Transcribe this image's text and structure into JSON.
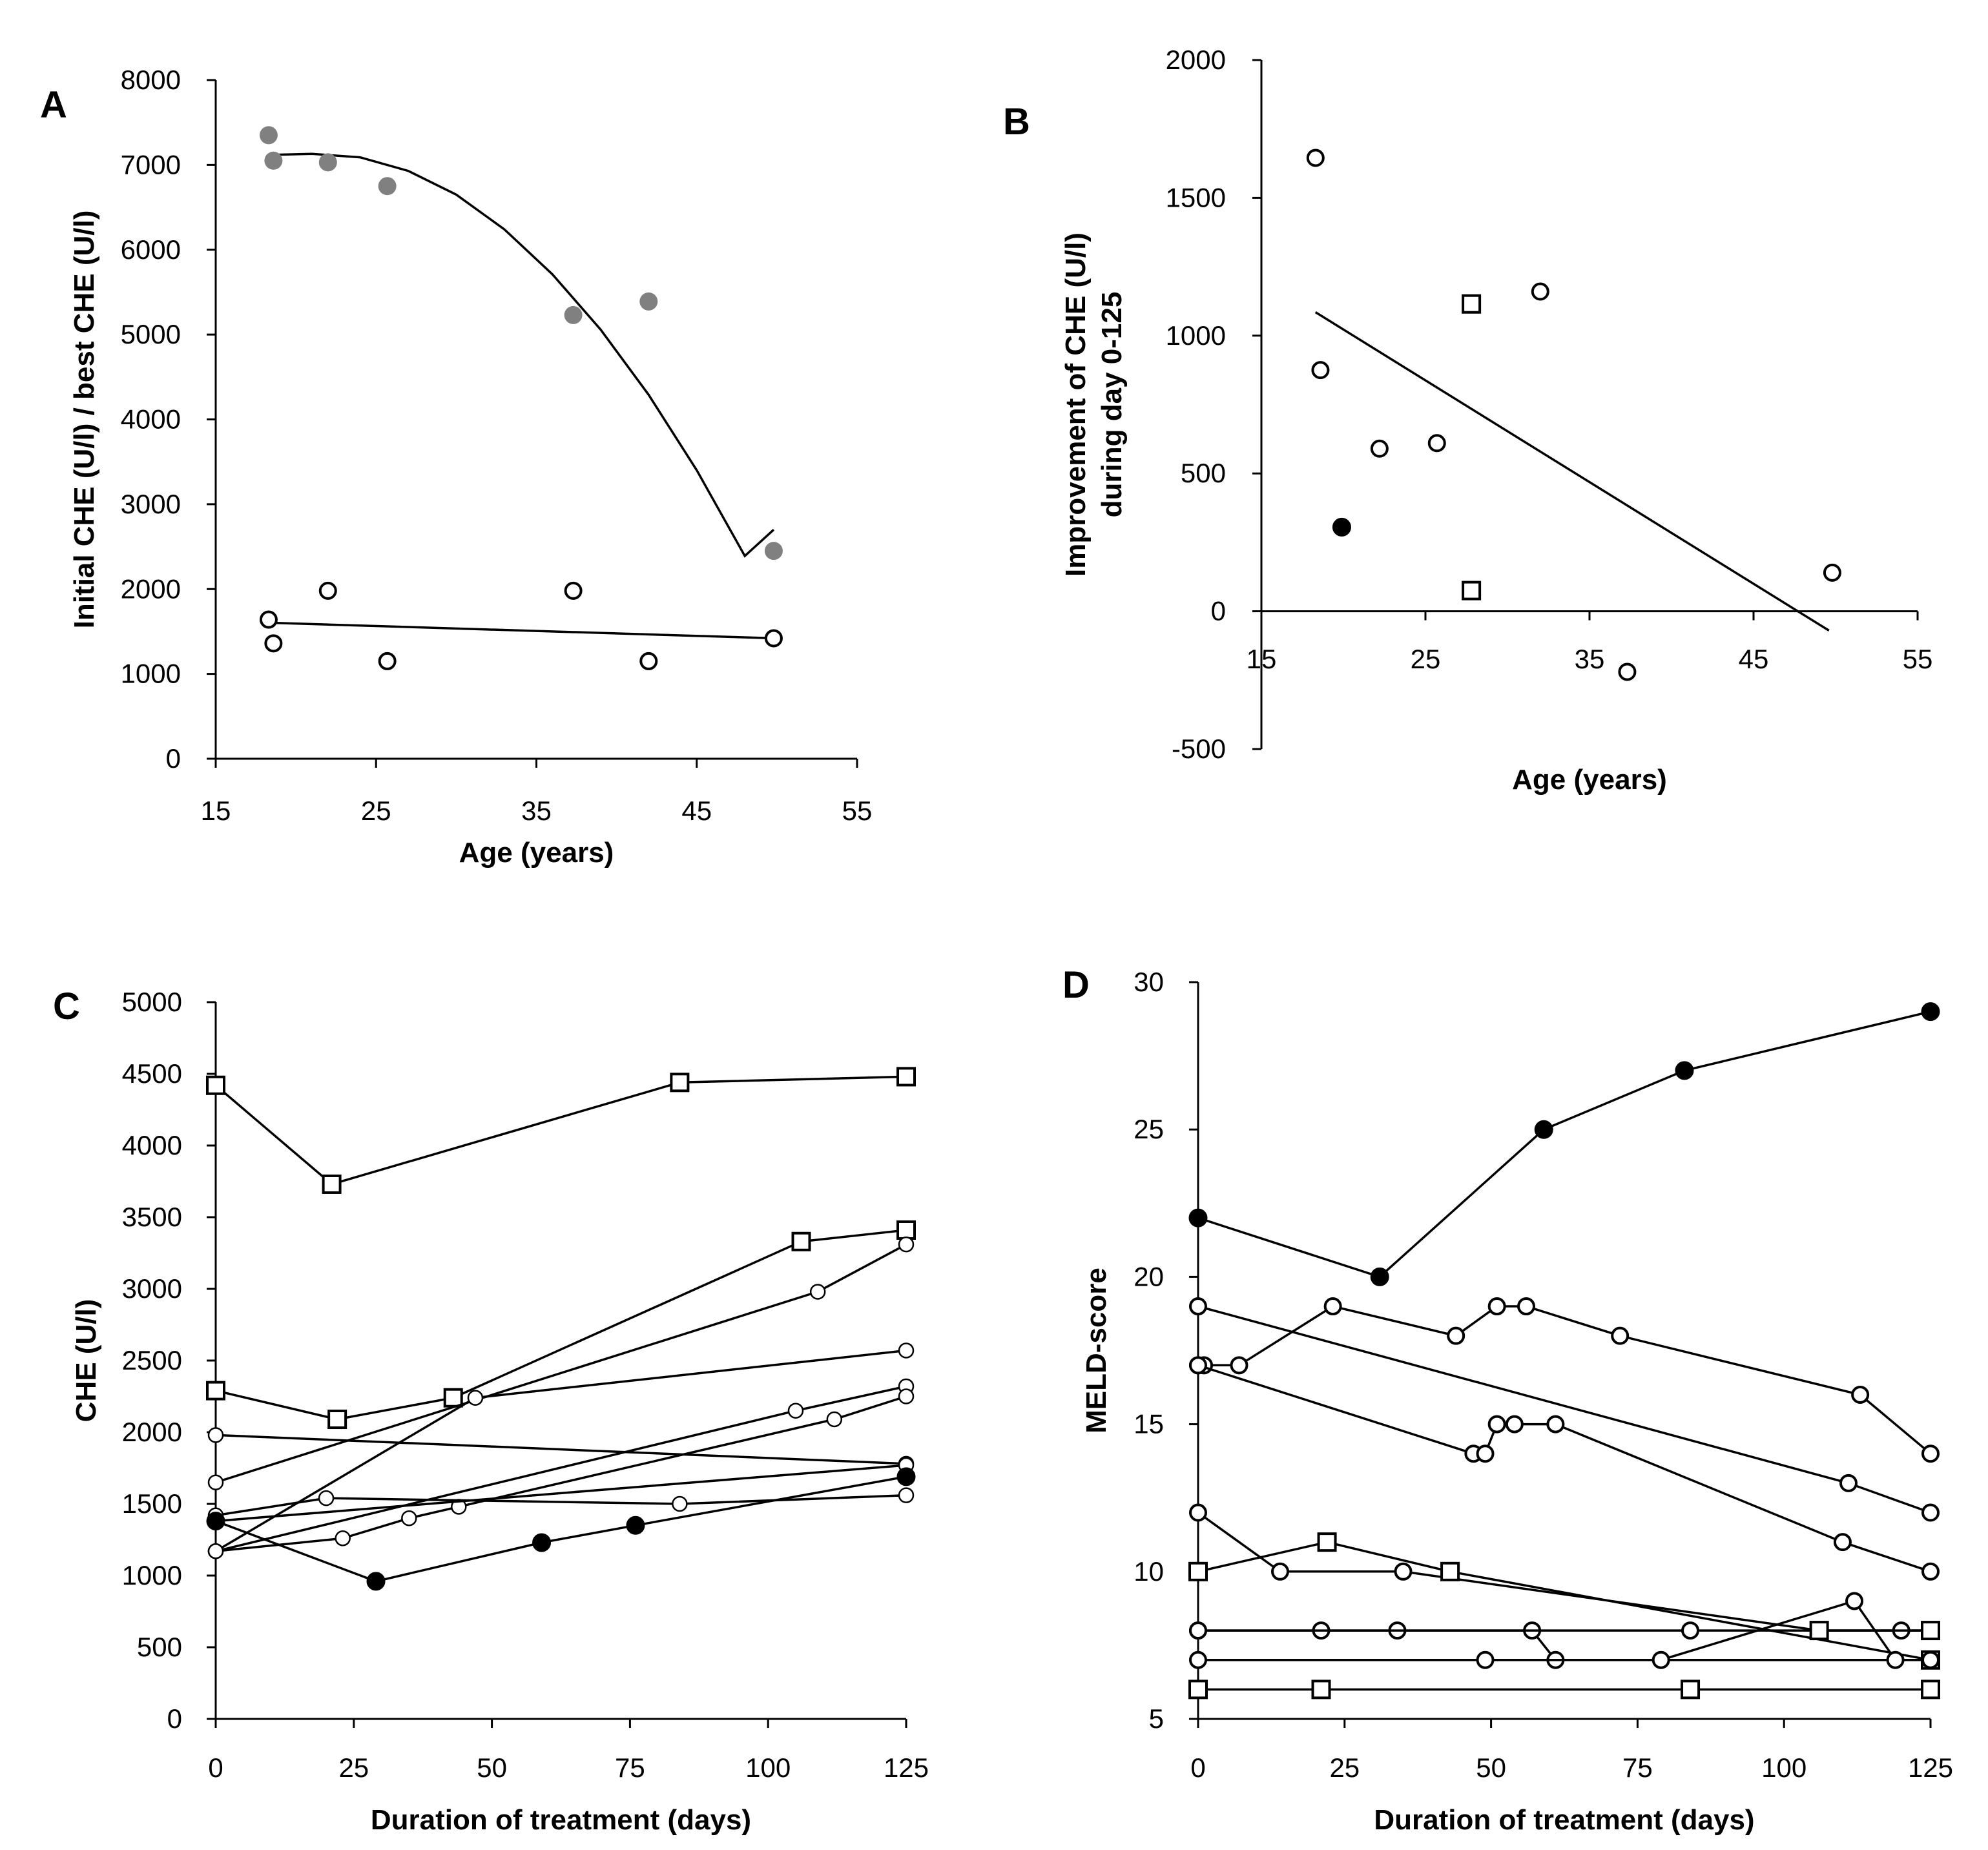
{
  "colors": {
    "ink": "#000000",
    "gray_marker": "#808080",
    "open_fill": "#ffffff"
  },
  "chart_data": [
    {
      "panel": "A",
      "type": "scatter",
      "xlabel": "Age (years)",
      "ylabel": "Initial CHE (U/l) / best CHE (U/l)",
      "xlim": [
        15,
        55
      ],
      "ylim": [
        0,
        8000
      ],
      "xticks": [
        15,
        25,
        35,
        45,
        55
      ],
      "yticks": [
        0,
        1000,
        2000,
        3000,
        4000,
        5000,
        6000,
        7000,
        8000
      ],
      "series": [
        {
          "name": "best CHE",
          "marker": "filled-gray",
          "x": [
            18.3,
            18.6,
            22.0,
            25.7,
            37.3,
            42.0,
            49.8
          ],
          "y": [
            7350,
            7050,
            7030,
            6750,
            5230,
            5390,
            2450
          ]
        },
        {
          "name": "initial CHE",
          "marker": "open-circle",
          "x": [
            18.3,
            18.6,
            22.0,
            25.7,
            37.3,
            42.0,
            49.8
          ],
          "y": [
            1640,
            1360,
            1980,
            1150,
            1980,
            1150,
            1420
          ]
        }
      ],
      "trendlines": [
        {
          "kind": "polynomial",
          "x": [
            18.8,
            21,
            24,
            27,
            30,
            33,
            36,
            39,
            42,
            45,
            48,
            49.8
          ],
          "y": [
            7120,
            7130,
            7090,
            6930,
            6650,
            6240,
            5710,
            5060,
            4290,
            3400,
            2390,
            2700
          ]
        },
        {
          "kind": "linear",
          "x": [
            18.8,
            49.8
          ],
          "y": [
            1600,
            1420
          ]
        }
      ]
    },
    {
      "panel": "B",
      "type": "scatter",
      "xlabel": "Age (years)",
      "ylabel_lines": [
        "Improvement of CHE (U/l)",
        "during day 0-125"
      ],
      "xlim": [
        15,
        55
      ],
      "ylim": [
        -500,
        2000
      ],
      "xticks": [
        15,
        25,
        35,
        45,
        55
      ],
      "yticks": [
        -500,
        0,
        500,
        1000,
        1500,
        2000
      ],
      "series": [
        {
          "name": "open circles",
          "marker": "open-circle",
          "x": [
            18.3,
            18.6,
            22.2,
            25.7,
            32.0,
            37.3,
            49.8
          ],
          "y": [
            1645,
            875,
            590,
            610,
            1160,
            -220,
            140
          ]
        },
        {
          "name": "filled circle",
          "marker": "filled-black",
          "x": [
            19.9
          ],
          "y": [
            305
          ]
        },
        {
          "name": "squares",
          "marker": "open-square",
          "x": [
            27.8,
            27.8
          ],
          "y": [
            1115,
            75
          ]
        }
      ],
      "trendlines": [
        {
          "kind": "linear",
          "x": [
            18.3,
            49.6
          ],
          "y": [
            1085,
            -70
          ]
        }
      ]
    },
    {
      "panel": "C",
      "type": "line",
      "xlabel": "Duration of treatment (days)",
      "ylabel": "CHE (U/l)",
      "xlim": [
        0,
        125
      ],
      "ylim": [
        0,
        5000
      ],
      "xticks": [
        0,
        25,
        50,
        75,
        100,
        125
      ],
      "yticks": [
        0,
        500,
        1000,
        1500,
        2000,
        2500,
        3000,
        3500,
        4000,
        4500,
        5000
      ],
      "series": [
        {
          "marker": "open-square",
          "x": [
            0,
            21,
            84,
            125
          ],
          "y": [
            4420,
            3730,
            4440,
            4480
          ]
        },
        {
          "marker": "open-square",
          "x": [
            0,
            22,
            43,
            106,
            125
          ],
          "y": [
            2290,
            2090,
            2240,
            3330,
            3410
          ]
        },
        {
          "marker": "small-open-circle",
          "x": [
            0,
            109,
            125
          ],
          "y": [
            1650,
            2980,
            3310
          ]
        },
        {
          "marker": "small-open-circle",
          "x": [
            0,
            47,
            125
          ],
          "y": [
            1170,
            2240,
            2570
          ]
        },
        {
          "marker": "small-open-circle",
          "x": [
            0,
            105,
            125
          ],
          "y": [
            1170,
            2150,
            2320
          ]
        },
        {
          "marker": "small-open-circle",
          "x": [
            0,
            125
          ],
          "y": [
            1980,
            1780
          ]
        },
        {
          "marker": "small-open-circle",
          "x": [
            0,
            23,
            35,
            44,
            112,
            125
          ],
          "y": [
            1170,
            1260,
            1400,
            1480,
            2090,
            2250
          ]
        },
        {
          "marker": "small-open-circle",
          "x": [
            0,
            20,
            84,
            125
          ],
          "y": [
            1420,
            1540,
            1500,
            1560
          ]
        },
        {
          "marker": "small-open-circle",
          "x": [
            0,
            125
          ],
          "y": [
            1380,
            1770
          ]
        },
        {
          "marker": "filled-black",
          "x": [
            0,
            29,
            59,
            76,
            125
          ],
          "y": [
            1380,
            960,
            1230,
            1350,
            1690
          ]
        }
      ]
    },
    {
      "panel": "D",
      "type": "line",
      "xlabel": "Duration of treatment (days)",
      "ylabel": "MELD-score",
      "xlim": [
        0,
        125
      ],
      "ylim": [
        5,
        30
      ],
      "xticks": [
        0,
        25,
        50,
        75,
        100,
        125
      ],
      "yticks": [
        5,
        10,
        15,
        20,
        25,
        30
      ],
      "series": [
        {
          "marker": "filled-black",
          "x": [
            0,
            31,
            59,
            83,
            125
          ],
          "y": [
            22,
            20,
            25,
            27,
            29
          ]
        },
        {
          "marker": "open-circle",
          "x": [
            0,
            1,
            7,
            23,
            44,
            51,
            56,
            72,
            113,
            125
          ],
          "y": [
            17,
            17,
            17,
            19,
            18,
            19,
            19,
            18,
            16,
            14
          ]
        },
        {
          "marker": "open-circle",
          "x": [
            0,
            111,
            125
          ],
          "y": [
            19,
            13,
            12
          ]
        },
        {
          "marker": "open-circle",
          "x": [
            0,
            47,
            49,
            51,
            54,
            61,
            110,
            125
          ],
          "y": [
            17,
            14,
            14,
            15,
            15,
            15,
            11,
            10
          ]
        },
        {
          "marker": "open-circle",
          "x": [
            0,
            14,
            35,
            106,
            125
          ],
          "y": [
            12,
            10,
            10,
            8,
            8
          ]
        },
        {
          "marker": "open-square",
          "x": [
            0,
            22,
            43,
            125
          ],
          "y": [
            10,
            11,
            10,
            7
          ]
        },
        {
          "marker": "open-circle",
          "x": [
            0,
            21,
            34,
            57,
            61,
            125
          ],
          "y": [
            8,
            8,
            8,
            8,
            7,
            7
          ]
        },
        {
          "marker": "open-circle",
          "x": [
            0,
            84,
            120,
            125
          ],
          "y": [
            8,
            8,
            8,
            8
          ]
        },
        {
          "marker": "open-circle",
          "x": [
            0,
            49,
            79,
            112,
            119,
            125
          ],
          "y": [
            7,
            7,
            7,
            9,
            7,
            7
          ]
        },
        {
          "marker": "open-square",
          "x": [
            0,
            21,
            84,
            125
          ],
          "y": [
            6,
            6,
            6,
            6
          ]
        },
        {
          "marker": "open-square",
          "x": [
            106,
            125
          ],
          "y": [
            8,
            8
          ]
        }
      ]
    }
  ]
}
